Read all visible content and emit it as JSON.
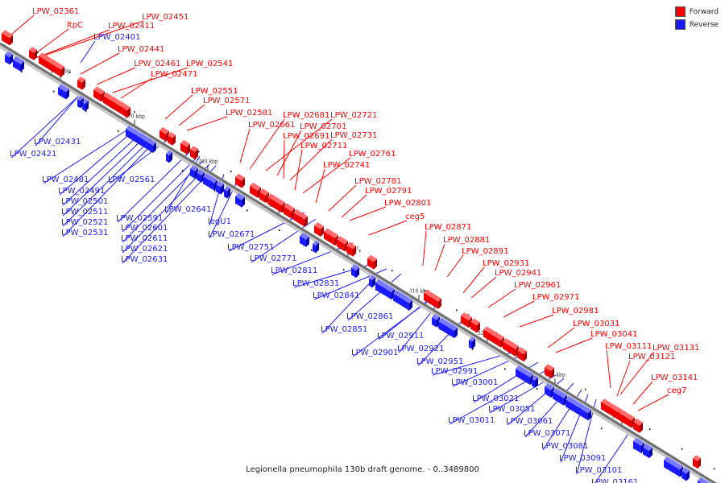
{
  "legend": {
    "forward_label": "Forward",
    "reverse_label": "Reverse",
    "forward_color": "#ff0000",
    "reverse_color": "#1a1aff"
  },
  "caption": "Legionella pneumophila 130b draft genome. - 0..3489800",
  "ticks": [
    "260 kbp",
    "270 kbp",
    "280 kbp",
    "290 kbp",
    "300 kbp",
    "310 kbp",
    "320 kbp",
    "330 kbp",
    "340 kbp"
  ],
  "genes": [
    {
      "name": "LPW_02361",
      "strand": "forward"
    },
    {
      "name": "ltpC",
      "strand": "forward"
    },
    {
      "name": "LPW_02411",
      "strand": "forward"
    },
    {
      "name": "LPW_02401",
      "strand": "reverse"
    },
    {
      "name": "LPW_02451",
      "strand": "forward"
    },
    {
      "name": "LPW_02441",
      "strand": "forward"
    },
    {
      "name": "LPW_02461",
      "strand": "forward"
    },
    {
      "name": "LPW_02541",
      "strand": "forward"
    },
    {
      "name": "LPW_02471",
      "strand": "forward"
    },
    {
      "name": "LPW_02551",
      "strand": "forward"
    },
    {
      "name": "LPW_02571",
      "strand": "forward"
    },
    {
      "name": "LPW_02581",
      "strand": "forward"
    },
    {
      "name": "LPW_02681",
      "strand": "forward"
    },
    {
      "name": "LPW_02721",
      "strand": "forward"
    },
    {
      "name": "LPW_02661",
      "strand": "forward"
    },
    {
      "name": "LPW_02701",
      "strand": "forward"
    },
    {
      "name": "LPW_02691",
      "strand": "forward"
    },
    {
      "name": "LPW_02731",
      "strand": "forward"
    },
    {
      "name": "LPW_02711",
      "strand": "forward"
    },
    {
      "name": "LPW_02761",
      "strand": "forward"
    },
    {
      "name": "LPW_02741",
      "strand": "forward"
    },
    {
      "name": "LPW_02781",
      "strand": "forward"
    },
    {
      "name": "LPW_02791",
      "strand": "forward"
    },
    {
      "name": "LPW_02801",
      "strand": "forward"
    },
    {
      "name": "ceg5",
      "strand": "forward"
    },
    {
      "name": "LPW_02871",
      "strand": "forward"
    },
    {
      "name": "LPW_02881",
      "strand": "forward"
    },
    {
      "name": "LPW_02891",
      "strand": "forward"
    },
    {
      "name": "LPW_02931",
      "strand": "forward"
    },
    {
      "name": "LPW_02941",
      "strand": "forward"
    },
    {
      "name": "LPW_02961",
      "strand": "forward"
    },
    {
      "name": "LPW_02971",
      "strand": "forward"
    },
    {
      "name": "LPW_02981",
      "strand": "forward"
    },
    {
      "name": "LPW_03031",
      "strand": "forward"
    },
    {
      "name": "LPW_03041",
      "strand": "forward"
    },
    {
      "name": "LPW_03111",
      "strand": "forward"
    },
    {
      "name": "LPW_03131",
      "strand": "forward"
    },
    {
      "name": "LPW_03121",
      "strand": "forward"
    },
    {
      "name": "LPW_03141",
      "strand": "forward"
    },
    {
      "name": "ceg7",
      "strand": "forward"
    },
    {
      "name": "LPW_02431",
      "strand": "reverse"
    },
    {
      "name": "LPW_02421",
      "strand": "reverse"
    },
    {
      "name": "LPW_02481",
      "strand": "reverse"
    },
    {
      "name": "LPW_02561",
      "strand": "reverse"
    },
    {
      "name": "LPW_02491",
      "strand": "reverse"
    },
    {
      "name": "LPW_02501",
      "strand": "reverse"
    },
    {
      "name": "LPW_02511",
      "strand": "reverse"
    },
    {
      "name": "LPW_02521",
      "strand": "reverse"
    },
    {
      "name": "LPW_02531",
      "strand": "reverse"
    },
    {
      "name": "LPW_02591",
      "strand": "reverse"
    },
    {
      "name": "LPW_02641",
      "strand": "reverse"
    },
    {
      "name": "LPW_02601",
      "strand": "reverse"
    },
    {
      "name": "LPW_02611",
      "strand": "reverse"
    },
    {
      "name": "LPW_02621",
      "strand": "reverse"
    },
    {
      "name": "LPW_02631",
      "strand": "reverse"
    },
    {
      "name": "legU1",
      "strand": "reverse"
    },
    {
      "name": "LPW_02671",
      "strand": "reverse"
    },
    {
      "name": "LPW_02751",
      "strand": "reverse"
    },
    {
      "name": "LPW_02771",
      "strand": "reverse"
    },
    {
      "name": "LPW_02811",
      "strand": "reverse"
    },
    {
      "name": "LPW_02831",
      "strand": "reverse"
    },
    {
      "name": "LPW_02841",
      "strand": "reverse"
    },
    {
      "name": "LPW_02861",
      "strand": "reverse"
    },
    {
      "name": "LPW_02851",
      "strand": "reverse"
    },
    {
      "name": "LPW_02911",
      "strand": "reverse"
    },
    {
      "name": "LPW_02921",
      "strand": "reverse"
    },
    {
      "name": "LPW_02901",
      "strand": "reverse"
    },
    {
      "name": "LPW_02951",
      "strand": "reverse"
    },
    {
      "name": "LPW_02991",
      "strand": "reverse"
    },
    {
      "name": "LPW_03001",
      "strand": "reverse"
    },
    {
      "name": "LPW_03021",
      "strand": "reverse"
    },
    {
      "name": "LPW_03051",
      "strand": "reverse"
    },
    {
      "name": "LPW_03011",
      "strand": "reverse"
    },
    {
      "name": "LPW_03061",
      "strand": "reverse"
    },
    {
      "name": "LPW_03071",
      "strand": "reverse"
    },
    {
      "name": "LPW_03081",
      "strand": "reverse"
    },
    {
      "name": "LPW_03091",
      "strand": "reverse"
    },
    {
      "name": "LPW_03101",
      "strand": "reverse"
    },
    {
      "name": "LPW_03161",
      "strand": "reverse"
    }
  ]
}
